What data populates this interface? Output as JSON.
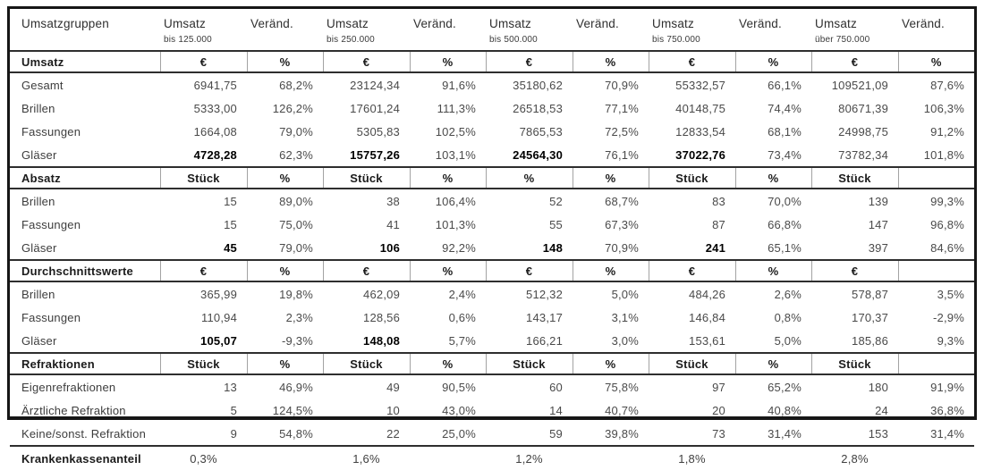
{
  "table": {
    "columns": [
      {
        "header": "Umsatzgruppen",
        "sub": ""
      },
      {
        "header": "Umsatz",
        "sub": "bis 125.000"
      },
      {
        "header": "Veränd.",
        "sub": ""
      },
      {
        "header": "Umsatz",
        "sub": "bis 250.000"
      },
      {
        "header": "Veränd.",
        "sub": ""
      },
      {
        "header": "Umsatz",
        "sub": "bis 500.000"
      },
      {
        "header": "Veränd.",
        "sub": ""
      },
      {
        "header": "Umsatz",
        "sub": "bis 750.000"
      },
      {
        "header": "Veränd.",
        "sub": ""
      },
      {
        "header": "Umsatz",
        "sub": "über 750.000"
      },
      {
        "header": "Veränd.",
        "sub": ""
      }
    ],
    "rows": [
      {
        "type": "section",
        "cells": [
          "Umsatz",
          "€",
          "%",
          "€",
          "%",
          "€",
          "%",
          "€",
          "%",
          "€",
          "%"
        ]
      },
      {
        "type": "data",
        "cells": [
          "Gesamt",
          "6941,75",
          "68,2%",
          "23124,34",
          "91,6%",
          "35180,62",
          "70,9%",
          "55332,57",
          "66,1%",
          "109521,09",
          "87,6%"
        ]
      },
      {
        "type": "data",
        "cells": [
          "Brillen",
          "5333,00",
          "126,2%",
          "17601,24",
          "111,3%",
          "26518,53",
          "77,1%",
          "40148,75",
          "74,4%",
          "80671,39",
          "106,3%"
        ]
      },
      {
        "type": "data",
        "cells": [
          "Fassungen",
          "1664,08",
          "79,0%",
          "5305,83",
          "102,5%",
          "7865,53",
          "72,5%",
          "12833,54",
          "68,1%",
          "24998,75",
          "91,2%"
        ]
      },
      {
        "type": "data",
        "cells": [
          "Gläser",
          "4728,28",
          "62,3%",
          "15757,26",
          "103,1%",
          "24564,30",
          "76,1%",
          "37022,76",
          "73,4%",
          "73782,34",
          "101,8%"
        ],
        "bold": [
          1,
          3,
          5,
          7
        ]
      },
      {
        "type": "section",
        "cells": [
          "Absatz",
          "Stück",
          "%",
          "Stück",
          "%",
          "%",
          "%",
          "Stück",
          "%",
          "Stück",
          ""
        ]
      },
      {
        "type": "data",
        "cells": [
          "Brillen",
          "15",
          "89,0%",
          "38",
          "106,4%",
          "52",
          "68,7%",
          "83",
          "70,0%",
          "139",
          "99,3%"
        ]
      },
      {
        "type": "data",
        "cells": [
          "Fassungen",
          "15",
          "75,0%",
          "41",
          "101,3%",
          "55",
          "67,3%",
          "87",
          "66,8%",
          "147",
          "96,8%"
        ]
      },
      {
        "type": "data",
        "cells": [
          "Gläser",
          "45",
          "79,0%",
          "106",
          "92,2%",
          "148",
          "70,9%",
          "241",
          "65,1%",
          "397",
          "84,6%"
        ],
        "bold": [
          1,
          3,
          5,
          7
        ]
      },
      {
        "type": "section",
        "cells": [
          "Durchschnittswerte",
          "€",
          "%",
          "€",
          "%",
          "€",
          "%",
          "€",
          "%",
          "€",
          ""
        ]
      },
      {
        "type": "data",
        "cells": [
          "Brillen",
          "365,99",
          "19,8%",
          "462,09",
          "2,4%",
          "512,32",
          "5,0%",
          "484,26",
          "2,6%",
          "578,87",
          "3,5%"
        ]
      },
      {
        "type": "data",
        "cells": [
          "Fassungen",
          "110,94",
          "2,3%",
          "128,56",
          "0,6%",
          "143,17",
          "3,1%",
          "146,84",
          "0,8%",
          "170,37",
          "-2,9%"
        ]
      },
      {
        "type": "data",
        "cells": [
          "Gläser",
          "105,07",
          "-9,3%",
          "148,08",
          "5,7%",
          "166,21",
          "3,0%",
          "153,61",
          "5,0%",
          "185,86",
          "9,3%"
        ],
        "bold": [
          1,
          3
        ]
      },
      {
        "type": "section",
        "cells": [
          "Refraktionen",
          "Stück",
          "%",
          "Stück",
          "%",
          "Stück",
          "%",
          "Stück",
          "%",
          "Stück",
          ""
        ]
      },
      {
        "type": "data",
        "cells": [
          "Eigenrefraktionen",
          "13",
          "46,9%",
          "49",
          "90,5%",
          "60",
          "75,8%",
          "97",
          "65,2%",
          "180",
          "91,9%"
        ]
      },
      {
        "type": "data",
        "cells": [
          "Ärztliche Refraktion",
          "5",
          "124,5%",
          "10",
          "43,0%",
          "14",
          "40,7%",
          "20",
          "40,8%",
          "24",
          "36,8%"
        ]
      },
      {
        "type": "data",
        "cells": [
          "Keine/sonst. Refraktion",
          "9",
          "54,8%",
          "22",
          "25,0%",
          "59",
          "39,8%",
          "73",
          "31,4%",
          "153",
          "31,4%"
        ]
      },
      {
        "type": "footer",
        "cells": [
          "Krankenkassenanteil",
          "0,3%",
          "",
          "1,6%",
          "",
          "1,2%",
          "",
          "1,8%",
          "",
          "2,8%",
          ""
        ]
      }
    ]
  }
}
